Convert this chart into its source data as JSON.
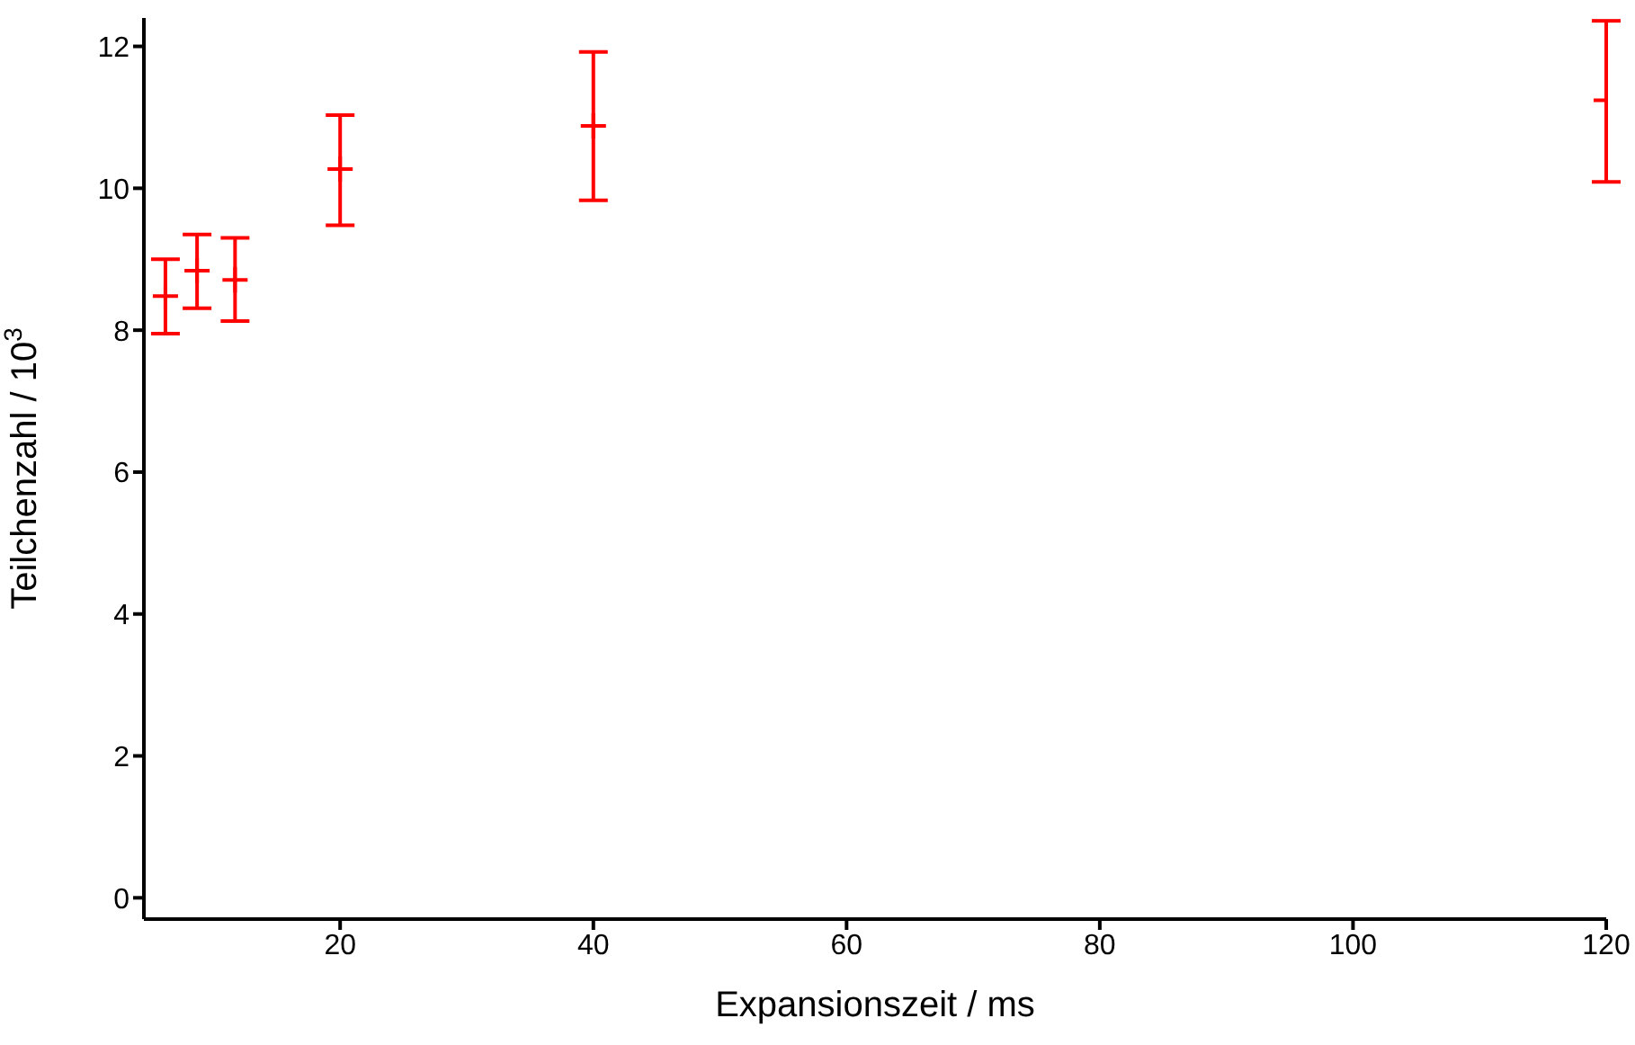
{
  "chart_data": {
    "type": "scatter",
    "xlabel": "Expansionszeit / ms",
    "ylabel": "Teilchenzahl / 10$^{3}$",
    "x": [
      6.2,
      8.7,
      11.7,
      20,
      40,
      120
    ],
    "series": [
      {
        "color": "#ff0000",
        "values": [
          8.48,
          8.84,
          8.71,
          10.27,
          10.88,
          11.24
        ],
        "errors": [
          [
            7.95,
            9.0
          ],
          [
            8.31,
            9.35
          ],
          [
            8.13,
            9.3
          ],
          [
            9.48,
            11.03
          ],
          [
            9.83,
            11.92
          ],
          [
            10.09,
            12.36
          ]
        ]
      }
    ],
    "xlim": [
      4.5,
      120
    ],
    "xticks": [
      20,
      40,
      60,
      80,
      100,
      120
    ],
    "ylim": [
      -0.3,
      12.4
    ],
    "yticks": [
      0,
      2,
      4,
      6,
      8,
      10,
      12
    ],
    "grid": false,
    "legend": false,
    "marker": "cross"
  }
}
